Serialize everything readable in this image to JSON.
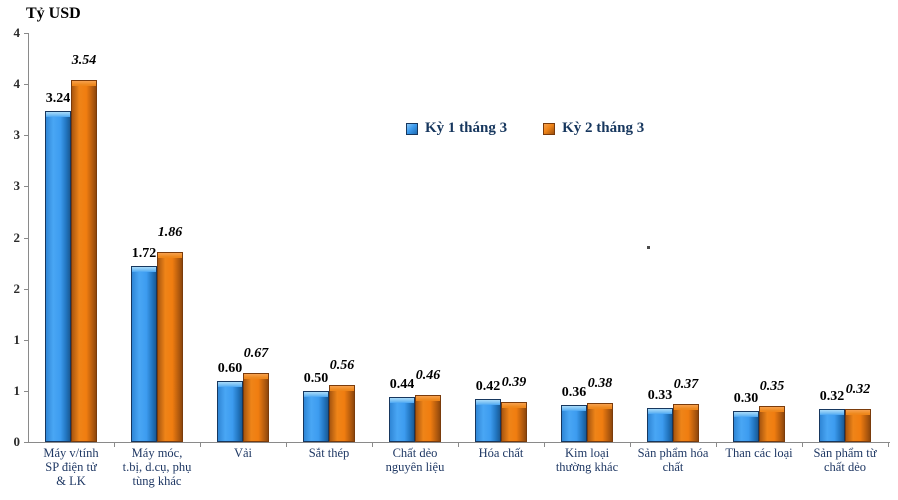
{
  "chart_data": {
    "type": "bar",
    "title": "Tỷ USD",
    "categories": [
      "Máy v/tính SP điện tử & LK",
      "Máy móc, t.bị, d.cụ, phụ tùng khác",
      "Vải",
      "Sắt thép",
      "Chất dẻo nguyên liệu",
      "Hóa chất",
      "Kim loại thường khác",
      "Sản phẩm hóa chất",
      "Than các loại",
      "Sản phẩm từ chất dẻo"
    ],
    "category_label_lines": [
      [
        "Máy v/tính",
        "SP điện tử",
        "& LK"
      ],
      [
        "Máy móc,",
        "t.bị, d.cụ, phụ",
        "tùng khác"
      ],
      [
        "Vải"
      ],
      [
        "Sắt thép"
      ],
      [
        "Chất dẻo",
        "nguyên liệu"
      ],
      [
        "Hóa chất"
      ],
      [
        "Kim loại",
        "thường khác"
      ],
      [
        "Sản phẩm hóa",
        "chất"
      ],
      [
        "Than các loại"
      ],
      [
        "Sản phẩm từ",
        "chất dẻo"
      ]
    ],
    "series": [
      {
        "name": "Kỳ 1 tháng 3",
        "color": "#3D9CF0",
        "border_color": "#17375E",
        "label_style": "bold",
        "values": [
          3.24,
          1.72,
          0.6,
          0.5,
          0.44,
          0.42,
          0.36,
          0.33,
          0.3,
          0.32
        ]
      },
      {
        "name": "Kỳ 2 tháng 3",
        "color": "#EF8418",
        "border_color": "#7A3B0B",
        "label_style": "bold-italic",
        "values": [
          3.54,
          1.86,
          0.67,
          0.56,
          0.46,
          0.39,
          0.38,
          0.37,
          0.35,
          0.32
        ]
      }
    ],
    "ylim": [
      0,
      4
    ],
    "ytick_step": 0.5,
    "ytick_labels_bottom_to_top": [
      "0",
      "1",
      "1",
      "2",
      "2",
      "3",
      "3",
      "4",
      "4"
    ],
    "value_label_decimals": 2,
    "grid": false,
    "legend_position": "upper-center",
    "xlabel": "",
    "ylabel": "Tỷ USD"
  }
}
